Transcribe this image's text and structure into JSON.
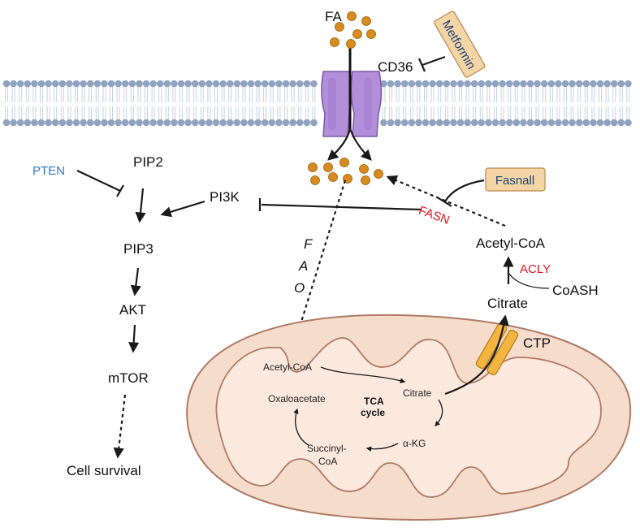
{
  "labels": {
    "fa": "FA",
    "cd36": "CD36",
    "metformin": "Metformin",
    "pten": "PTEN",
    "pip2": "PIP2",
    "pi3k": "PI3K",
    "pip3": "PIP3",
    "akt": "AKT",
    "mtor": "mTOR",
    "cell_survival": "Cell survival",
    "fasnall": "Fasnall",
    "fasn": "FASN",
    "acetyl_coa_cyto": "Acetyl-CoA",
    "acly": "ACLY",
    "coash": "CoASH",
    "citrate_cyto": "Citrate",
    "ctp": "CTP",
    "fao": "FAO",
    "tca_cycle_line1": "TCA",
    "tca_cycle_line2": "cycle",
    "acetyl_coa_mito": "Acetyl-CoA",
    "oxaloacetate": "Oxaloacetate",
    "citrate_mito": "Citrate",
    "alpha_kg": "α-KG",
    "succinyl_line1": "Succinyl-",
    "succinyl_line2": "CoA"
  },
  "colors": {
    "membrane_head": "#8fa3c0",
    "membrane_tail": "#c7d2e2",
    "transporter": "#b48fd9",
    "fatty_acid": "#d98c1e",
    "mito_outer": "#f6dccb",
    "mito_border": "#b07a63",
    "ctp_channel": "#f3b53f",
    "drug_box": "#f4d6a6",
    "inhibitor_red": "#e4141e",
    "regulator_blue": "#2a77c9"
  },
  "icons": [
    "cd36-transporter-icon",
    "mitochondrion-icon",
    "ctp-channel-icon",
    "fatty-acid-dot-icon"
  ]
}
